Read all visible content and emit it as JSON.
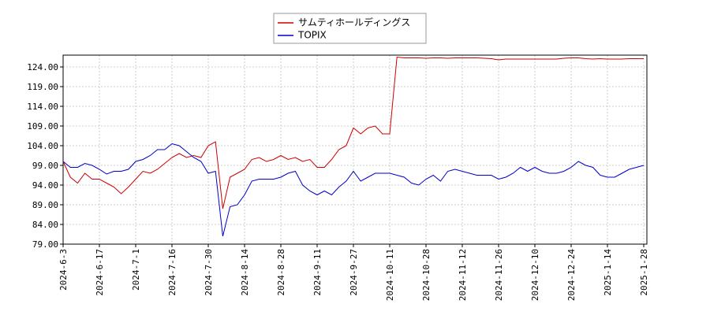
{
  "chart_data": {
    "type": "line",
    "categories": [
      "2024-6-3",
      null,
      null,
      null,
      null,
      "2024-6-17",
      null,
      null,
      null,
      null,
      "2024-7-1",
      null,
      null,
      null,
      null,
      "2024-7-16",
      null,
      null,
      null,
      null,
      "2024-7-30",
      null,
      null,
      null,
      null,
      "2024-8-14",
      null,
      null,
      null,
      null,
      "2024-8-28",
      null,
      null,
      null,
      null,
      "2024-9-11",
      null,
      null,
      null,
      null,
      "2024-9-27",
      null,
      null,
      null,
      null,
      "2024-10-11",
      null,
      null,
      null,
      null,
      "2024-10-28",
      null,
      null,
      null,
      null,
      "2024-11-12",
      null,
      null,
      null,
      null,
      "2024-11-26",
      null,
      null,
      null,
      null,
      "2024-12-10",
      null,
      null,
      null,
      null,
      "2024-12-24",
      null,
      null,
      null,
      null,
      "2025-1-14",
      null,
      null,
      null,
      null,
      "2025-1-28"
    ],
    "series": [
      {
        "name": "サムティホールディングス",
        "color": "#cc0000",
        "values": [
          100,
          96,
          94.5,
          97,
          95.5,
          95.5,
          94.5,
          93.5,
          91.8,
          93.5,
          95.5,
          97.5,
          97,
          98,
          99.5,
          101,
          102,
          101,
          101.5,
          101,
          104,
          105,
          88,
          96,
          97,
          98,
          100.5,
          101,
          100,
          100.5,
          101.5,
          100.5,
          101,
          100,
          100.5,
          98.5,
          98.5,
          100.5,
          103,
          104,
          108.5,
          107,
          108.5,
          109,
          107,
          107,
          126.5,
          126.3,
          126.3,
          126.3,
          126.2,
          126.3,
          126.3,
          126.2,
          126.3,
          126.3,
          126.3,
          126.3,
          126.2,
          126.1,
          125.8,
          126,
          126,
          126,
          126,
          126,
          126,
          126,
          126,
          126.2,
          126.3,
          126.3,
          126.1,
          126,
          126.1,
          126,
          126,
          126,
          126.1,
          126.1,
          126.1
        ]
      },
      {
        "name": "TOPIX",
        "color": "#0000cc",
        "values": [
          100,
          98.5,
          98.5,
          99.5,
          99,
          98,
          96.8,
          97.5,
          97.5,
          98,
          100,
          100.5,
          101.5,
          103,
          103,
          104.5,
          104,
          102.5,
          101,
          100,
          97,
          97.5,
          81,
          88.5,
          89,
          91.5,
          95,
          95.5,
          95.5,
          95.5,
          96,
          97,
          97.5,
          94,
          92.5,
          91.5,
          92.5,
          91.5,
          93.5,
          95,
          97.5,
          95,
          96,
          97,
          97,
          97,
          96.5,
          96,
          94.5,
          94,
          95.5,
          96.5,
          95,
          97.5,
          98,
          97.5,
          97,
          96.5,
          96.5,
          96.5,
          95.5,
          96,
          97,
          98.5,
          97.5,
          98.5,
          97.5,
          97,
          97,
          97.5,
          98.5,
          100,
          99,
          98.5,
          96.5,
          96,
          96,
          97,
          98,
          98.5,
          99
        ]
      }
    ],
    "ylim": [
      79,
      127
    ],
    "yticks": [
      {
        "value": 79,
        "label": "79.00"
      },
      {
        "value": 84,
        "label": "84.00"
      },
      {
        "value": 89,
        "label": "89.00"
      },
      {
        "value": 94,
        "label": "94.00"
      },
      {
        "value": 99,
        "label": "99.00"
      },
      {
        "value": 104,
        "label": "104.00"
      },
      {
        "value": 109,
        "label": "109.00"
      },
      {
        "value": 114,
        "label": "114.00"
      },
      {
        "value": 119,
        "label": "119.00"
      },
      {
        "value": 124,
        "label": "124.00"
      }
    ],
    "grid": true
  }
}
